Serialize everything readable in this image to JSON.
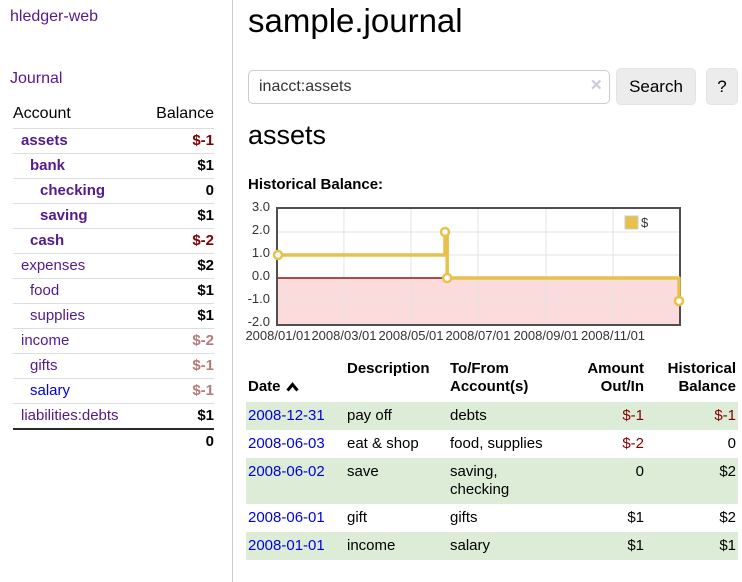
{
  "app": {
    "brand": "hledger-web",
    "journal_link": "Journal"
  },
  "sidebar": {
    "account_header": "Account",
    "balance_header": "Balance",
    "accounts": [
      {
        "name": "assets",
        "balance": "$-1",
        "indent": 1,
        "infilter": true,
        "neg": true
      },
      {
        "name": "bank",
        "balance": "$1",
        "indent": 2,
        "infilter": true,
        "neg": false
      },
      {
        "name": "checking",
        "balance": "0",
        "indent": 3,
        "infilter": true,
        "neg": false
      },
      {
        "name": "saving",
        "balance": "$1",
        "indent": 3,
        "infilter": true,
        "neg": false
      },
      {
        "name": "cash",
        "balance": "$-2",
        "indent": 2,
        "infilter": true,
        "neg": true
      },
      {
        "name": "expenses",
        "balance": "$2",
        "indent": 1,
        "infilter": false,
        "neg": false
      },
      {
        "name": "food",
        "balance": "$1",
        "indent": 2,
        "infilter": false,
        "neg": false
      },
      {
        "name": "supplies",
        "balance": "$1",
        "indent": 2,
        "infilter": false,
        "neg": false
      },
      {
        "name": "income",
        "balance": "$-2",
        "indent": 1,
        "infilter": false,
        "neg": true
      },
      {
        "name": "gifts",
        "balance": "$-1",
        "indent": 2,
        "infilter": false,
        "neg": true
      },
      {
        "name": "salary",
        "balance": "$-1",
        "indent": 2,
        "infilter": false,
        "neg": true,
        "unvisited": true
      },
      {
        "name": "liabilities:debts",
        "balance": "$1",
        "indent": 1,
        "infilter": false,
        "neg": false
      }
    ],
    "total": "0"
  },
  "main": {
    "title": "sample.journal",
    "account_heading": "assets",
    "chart_heading": "Historical Balance:"
  },
  "search": {
    "value": "inacct:assets",
    "clear_icon": "✕",
    "search_button": "Search",
    "help_button": "?"
  },
  "chart_data": {
    "type": "line",
    "step": true,
    "title": "Historical Balance:",
    "series": [
      {
        "name": "$",
        "color": "#e8c14d",
        "points": [
          [
            "2008-01-01",
            1.0
          ],
          [
            "2008-06-01",
            2.0
          ],
          [
            "2008-06-03",
            0.0
          ],
          [
            "2008-12-31",
            -1.0
          ]
        ]
      }
    ],
    "x_range": [
      "2008-01-01",
      "2008-12-31"
    ],
    "x_ticks": [
      {
        "date": "2008-01-01",
        "label": "2008/01/01"
      },
      {
        "date": "2008-03-01",
        "label": "2008/03/01"
      },
      {
        "date": "2008-05-01",
        "label": "2008/05/01"
      },
      {
        "date": "2008-07-01",
        "label": "2008/07/01"
      },
      {
        "date": "2008-09-01",
        "label": "2008/09/01"
      },
      {
        "date": "2008-11-01",
        "label": "2008/11/01"
      }
    ],
    "y_ticks": [
      {
        "value": 3,
        "label": "3.0"
      },
      {
        "value": 2,
        "label": "2.0"
      },
      {
        "value": 1,
        "label": "1.0"
      },
      {
        "value": 0,
        "label": "0.0"
      },
      {
        "value": -1,
        "label": "-1.0"
      },
      {
        "value": -2,
        "label": "-2.0"
      }
    ],
    "ylim": [
      -2,
      3
    ],
    "legend_label": "$",
    "grid_color": "#e3e3e3",
    "negative_region": {
      "from": 0,
      "to": -2,
      "color": "#fbdbdb"
    },
    "zero_line_color": "#8f1717",
    "marker_fill": "#ffffff"
  },
  "register": {
    "headers": {
      "date": "Date",
      "description": "Description",
      "accounts": "To/From\nAccount(s)",
      "amount": "Amount\nOut/In",
      "balance": "Historical\nBalance"
    },
    "rows": [
      {
        "date": "2008-12-31",
        "description": "pay off",
        "accounts": "debts",
        "amount": "$-1",
        "balance": "$-1"
      },
      {
        "date": "2008-06-03",
        "description": "eat & shop",
        "accounts": "food, supplies",
        "amount": "$-2",
        "balance": "0"
      },
      {
        "date": "2008-06-02",
        "description": "save",
        "accounts": "saving, checking",
        "amount": "0",
        "balance": "$2"
      },
      {
        "date": "2008-06-01",
        "description": "gift",
        "accounts": "gifts",
        "amount": "$1",
        "balance": "$2"
      },
      {
        "date": "2008-01-01",
        "description": "income",
        "accounts": "salary",
        "amount": "$1",
        "balance": "$1"
      }
    ]
  }
}
